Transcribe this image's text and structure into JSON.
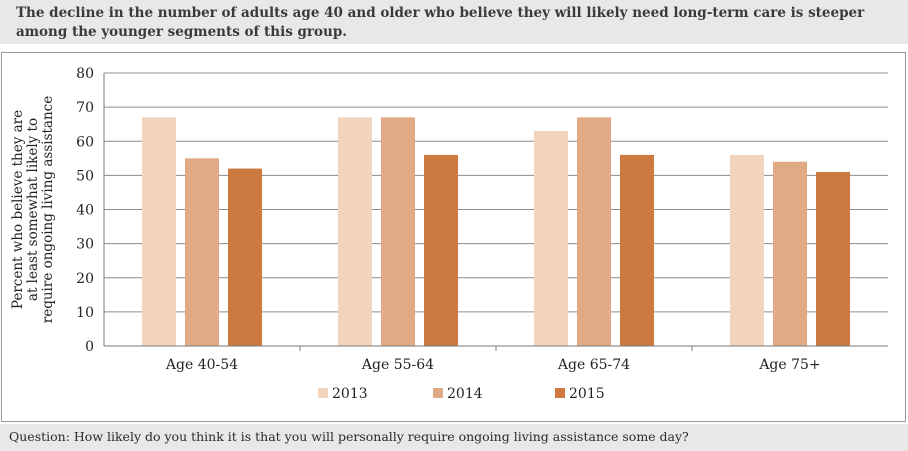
{
  "header": {
    "text": "The decline in the number of adults age 40 and older who believe they will likely need long-term care is steeper among the younger segments of this group."
  },
  "footer": {
    "question": "Question: How likely do you think it is that you will personally require ongoing living assistance some day?"
  },
  "chart_data": {
    "type": "bar",
    "title": "",
    "xlabel": "",
    "ylabel": "Percent who believe they are at least somewhat likely to require ongoing living assistance",
    "ylabel_lines": [
      "Percent who believe they are",
      "at least somewhat likely to",
      "require ongoing living assistance"
    ],
    "ylim": [
      0,
      80
    ],
    "yticks": [
      0,
      10,
      20,
      30,
      40,
      50,
      60,
      70,
      80
    ],
    "grid": true,
    "legend_position": "bottom",
    "categories": [
      "Age 40-54",
      "Age 55-64",
      "Age 65-74",
      "Age 75+"
    ],
    "series": [
      {
        "name": "2013",
        "color": "#f2d3bb",
        "values": [
          67,
          67,
          63,
          56
        ]
      },
      {
        "name": "2014",
        "color": "#e0aa84",
        "values": [
          55,
          67,
          67,
          54
        ]
      },
      {
        "name": "2015",
        "color": "#cd7a41",
        "values": [
          52,
          56,
          56,
          51
        ]
      }
    ]
  }
}
